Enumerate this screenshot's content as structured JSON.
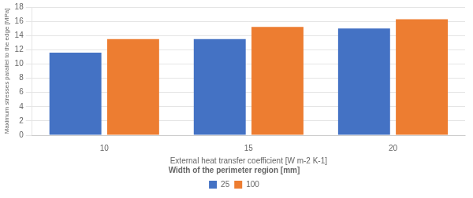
{
  "chart_data": {
    "type": "bar",
    "categories": [
      "10",
      "15",
      "20"
    ],
    "series": [
      {
        "name": "25",
        "color": "#4472C4",
        "values": [
          11.6,
          13.5,
          15.0
        ]
      },
      {
        "name": "100",
        "color": "#ED7D31",
        "values": [
          13.5,
          15.2,
          16.3
        ]
      }
    ],
    "xlabel": "External heat transfer coefficient [W m-2 K-1]",
    "ylabel": "Maximum stresses parallel to the edge [MPa]",
    "legend_title": "Width of the perimeter region [mm]",
    "legend": "bottom",
    "ylim": [
      0,
      18
    ],
    "yticks": [
      0,
      2,
      4,
      6,
      8,
      10,
      12,
      14,
      16,
      18
    ],
    "grid": true
  }
}
